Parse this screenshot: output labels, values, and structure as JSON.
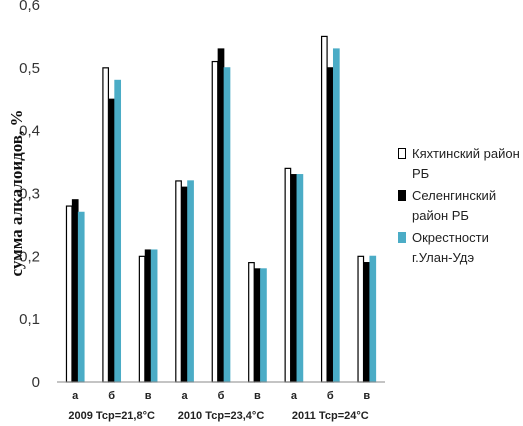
{
  "chart_data": {
    "type": "bar",
    "ylabel": "сумма алкалоидов, %",
    "ylim": [
      0,
      0.6
    ],
    "yticks": [
      "0",
      "0,1",
      "0,2",
      "0,3",
      "0,4",
      "0,5",
      "0,6"
    ],
    "categories": [
      "а",
      "б",
      "в",
      "а",
      "б",
      "в",
      "а",
      "б",
      "в"
    ],
    "groups": [
      "2009 Тср=21,8°С",
      "2010 Тср=23,4°С",
      "2011 Тср=24°С"
    ],
    "legend_position": "right",
    "series": [
      {
        "name": "Кяхтинский район РБ",
        "fill": "#ffffff",
        "stroke": "#000000",
        "values": [
          0.28,
          0.5,
          0.2,
          0.32,
          0.51,
          0.19,
          0.34,
          0.55,
          0.2
        ]
      },
      {
        "name": "Селенгинский район РБ",
        "fill": "#000000",
        "stroke": "#000000",
        "values": [
          0.29,
          0.45,
          0.21,
          0.31,
          0.53,
          0.18,
          0.33,
          0.5,
          0.19
        ]
      },
      {
        "name": "Окрестности г.Улан-Удэ",
        "fill": "#4bacc6",
        "stroke": "#4bacc6",
        "values": [
          0.27,
          0.48,
          0.21,
          0.32,
          0.5,
          0.18,
          0.33,
          0.53,
          0.2
        ]
      }
    ]
  }
}
